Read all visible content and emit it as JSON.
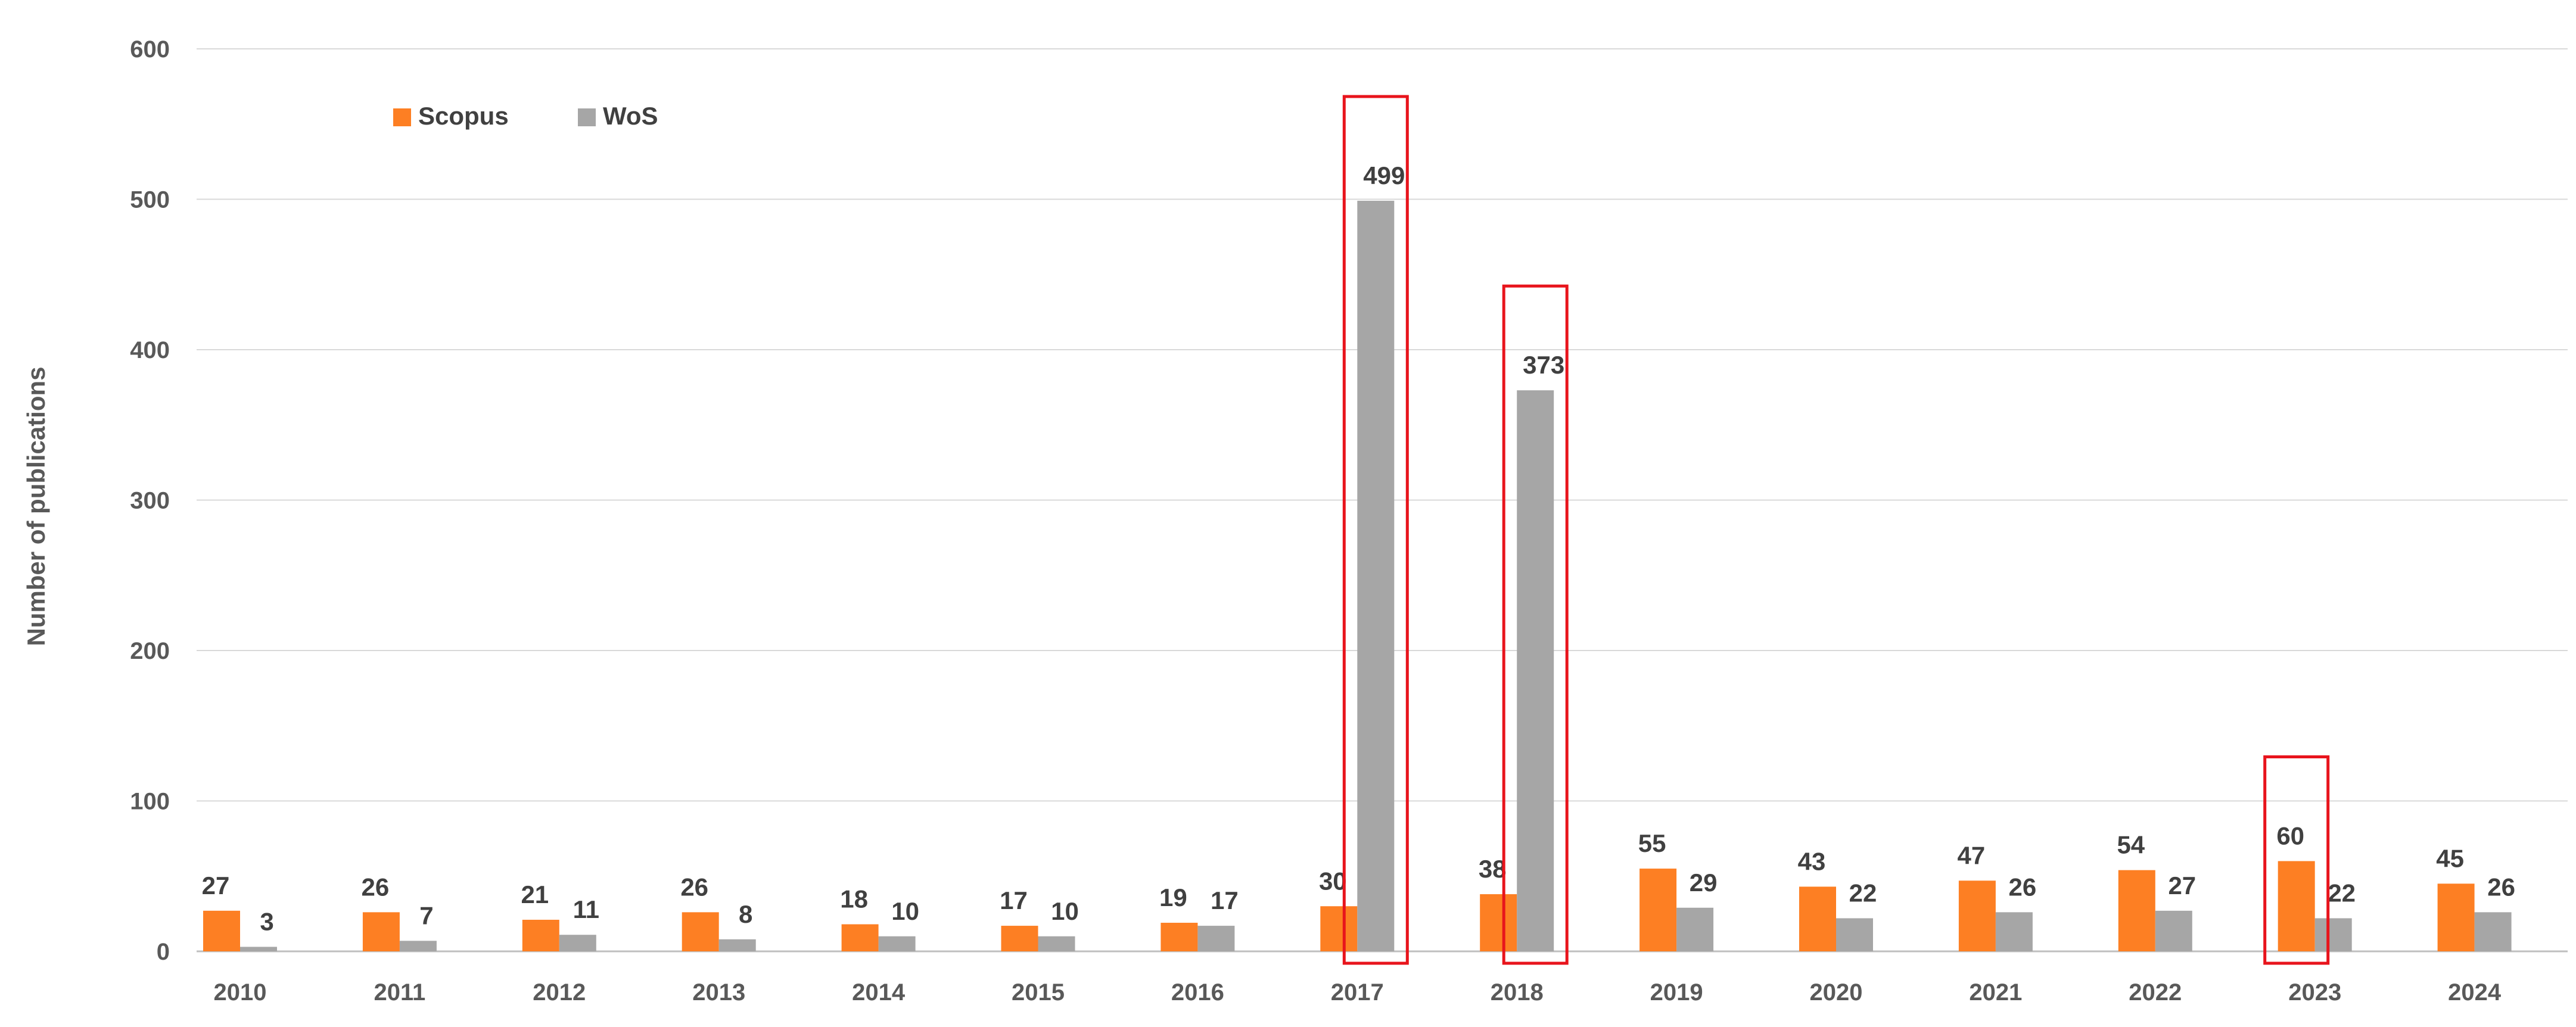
{
  "chart_data": {
    "type": "bar",
    "title": "",
    "xlabel": "",
    "ylabel": "Number of publications",
    "ylim": [
      0,
      600
    ],
    "yticks": [
      0,
      100,
      200,
      300,
      400,
      500,
      600
    ],
    "grid": true,
    "legend_position": "top-left",
    "categories": [
      "2010",
      "2011",
      "2012",
      "2013",
      "2014",
      "2015",
      "2016",
      "2017",
      "2018",
      "2019",
      "2020",
      "2021",
      "2022",
      "2023",
      "2024"
    ],
    "series": [
      {
        "name": "Scopus",
        "color": "#fd7f23",
        "values": [
          27,
          26,
          21,
          26,
          18,
          17,
          19,
          30,
          38,
          55,
          43,
          47,
          54,
          60,
          45
        ]
      },
      {
        "name": "WoS",
        "color": "#a6a6a6",
        "values": [
          3,
          7,
          11,
          8,
          10,
          10,
          17,
          499,
          373,
          29,
          22,
          26,
          27,
          22,
          26
        ]
      }
    ],
    "highlights": [
      {
        "category": "2017",
        "series": "WoS",
        "color": "#e8141c"
      },
      {
        "category": "2018",
        "series": "WoS",
        "color": "#e8141c"
      },
      {
        "category": "2023",
        "series": "Scopus",
        "color": "#e8141c"
      }
    ]
  }
}
